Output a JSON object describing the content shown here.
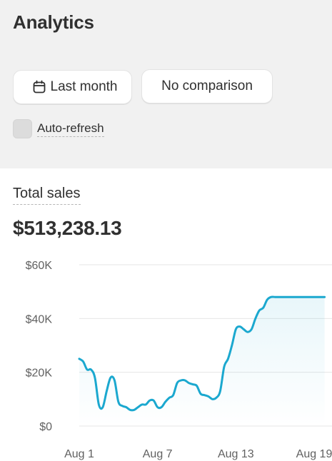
{
  "header": {
    "title": "Analytics",
    "date_range_label": "Last month",
    "comparison_label": "No comparison",
    "auto_refresh_label": "Auto-refresh",
    "auto_refresh_checked": false
  },
  "metric": {
    "label": "Total sales",
    "value": "$513,238.13"
  },
  "colors": {
    "line": "#1ba8cf",
    "grid": "#e6e6e6",
    "background": "#f1f1f1"
  },
  "chart_data": {
    "type": "area",
    "y_ticks": [
      "$0",
      "$20K",
      "$40K",
      "$60K"
    ],
    "ylim": [
      0,
      60000
    ],
    "x_tick_labels": [
      "Aug 1",
      "Aug 7",
      "Aug 13",
      "Aug 19"
    ],
    "x_tick_days": [
      1,
      7,
      13,
      19
    ],
    "xlim": [
      1,
      19.8
    ],
    "series": [
      {
        "x": [
          1,
          1.3,
          1.6,
          1.9,
          2.2,
          2.5,
          2.8,
          3.1,
          3.4,
          3.7,
          4.0,
          4.3,
          4.6,
          4.9,
          5.2,
          5.5,
          5.8,
          6.1,
          6.4,
          6.7,
          7.0,
          7.3,
          7.6,
          7.9,
          8.2,
          8.5,
          8.8,
          9.1,
          9.4,
          9.7,
          10.0,
          10.3,
          10.6,
          10.9,
          11.2,
          11.5,
          11.8,
          12.1,
          12.4,
          12.7,
          13.0,
          13.3,
          13.6,
          13.9,
          14.2,
          14.5,
          14.8,
          15.1,
          15.4,
          15.7,
          16.0,
          16.3,
          16.6,
          16.9,
          17.2,
          17.5,
          17.8,
          18.1,
          18.4,
          18.7,
          19.0,
          19.3,
          19.6,
          19.8
        ],
        "values": [
          25000,
          24000,
          21000,
          21000,
          18000,
          8000,
          7000,
          13000,
          18000,
          17000,
          9000,
          7500,
          7000,
          6000,
          6000,
          7000,
          8000,
          8000,
          9500,
          9500,
          7000,
          7000,
          9000,
          10500,
          11500,
          16000,
          17000,
          17000,
          16000,
          15500,
          15000,
          12000,
          11500,
          11000,
          10000,
          10500,
          13000,
          22000,
          25000,
          30000,
          36000,
          37000,
          36000,
          35000,
          36000,
          40000,
          43000,
          44000,
          47000,
          48000,
          48000,
          48000,
          48000,
          48000,
          48000,
          48000,
          48000,
          48000,
          48000,
          48000,
          48000,
          48000,
          48000,
          48000
        ]
      }
    ]
  }
}
